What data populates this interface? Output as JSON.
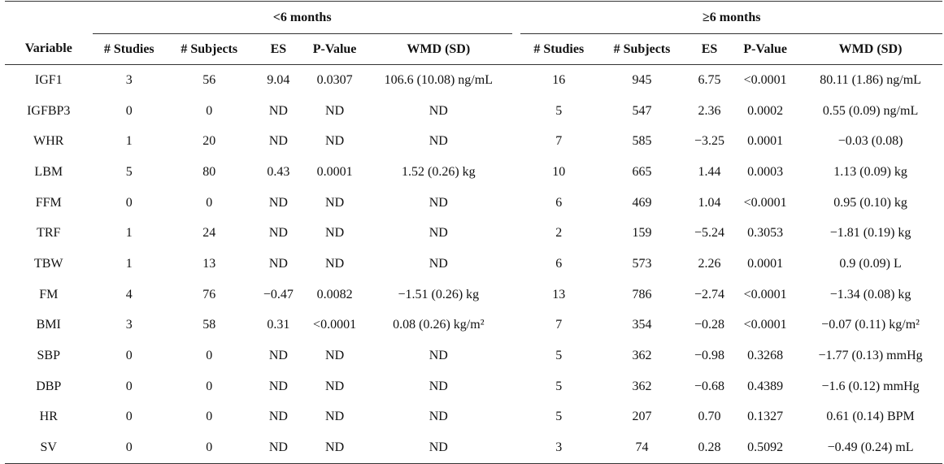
{
  "groups": [
    "<6 months",
    "≥6 months"
  ],
  "headers": [
    "Variable",
    "# Studies",
    "# Subjects",
    "ES",
    "P-Value",
    "WMD (SD)",
    "# Studies",
    "# Subjects",
    "ES",
    "P-Value",
    "WMD (SD)"
  ],
  "rows": [
    [
      "IGF1",
      "3",
      "56",
      "9.04",
      "0.0307",
      "106.6 (10.08) ng/mL",
      "16",
      "945",
      "6.75",
      "<0.0001",
      "80.11 (1.86) ng/mL"
    ],
    [
      "IGFBP3",
      "0",
      "0",
      "ND",
      "ND",
      "ND",
      "5",
      "547",
      "2.36",
      "0.0002",
      "0.55 (0.09) ng/mL"
    ],
    [
      "WHR",
      "1",
      "20",
      "ND",
      "ND",
      "ND",
      "7",
      "585",
      "−3.25",
      "0.0001",
      "−0.03 (0.08)"
    ],
    [
      "LBM",
      "5",
      "80",
      "0.43",
      "0.0001",
      "1.52 (0.26) kg",
      "10",
      "665",
      "1.44",
      "0.0003",
      "1.13 (0.09) kg"
    ],
    [
      "FFM",
      "0",
      "0",
      "ND",
      "ND",
      "ND",
      "6",
      "469",
      "1.04",
      "<0.0001",
      "0.95 (0.10) kg"
    ],
    [
      "TRF",
      "1",
      "24",
      "ND",
      "ND",
      "ND",
      "2",
      "159",
      "−5.24",
      "0.3053",
      "−1.81 (0.19) kg"
    ],
    [
      "TBW",
      "1",
      "13",
      "ND",
      "ND",
      "ND",
      "6",
      "573",
      "2.26",
      "0.0001",
      "0.9 (0.09) L"
    ],
    [
      "FM",
      "4",
      "76",
      "−0.47",
      "0.0082",
      "−1.51 (0.26) kg",
      "13",
      "786",
      "−2.74",
      "<0.0001",
      "−1.34 (0.08) kg"
    ],
    [
      "BMI",
      "3",
      "58",
      "0.31",
      "<0.0001",
      "0.08 (0.26) kg/m²",
      "7",
      "354",
      "−0.28",
      "<0.0001",
      "−0.07 (0.11) kg/m²"
    ],
    [
      "SBP",
      "0",
      "0",
      "ND",
      "ND",
      "ND",
      "5",
      "362",
      "−0.98",
      "0.3268",
      "−1.77 (0.13) mmHg"
    ],
    [
      "DBP",
      "0",
      "0",
      "ND",
      "ND",
      "ND",
      "5",
      "362",
      "−0.68",
      "0.4389",
      "−1.6 (0.12) mmHg"
    ],
    [
      "HR",
      "0",
      "0",
      "ND",
      "ND",
      "ND",
      "5",
      "207",
      "0.70",
      "0.1327",
      "0.61 (0.14) BPM"
    ],
    [
      "SV",
      "0",
      "0",
      "ND",
      "ND",
      "ND",
      "3",
      "74",
      "0.28",
      "0.5092",
      "−0.49 (0.24) mL"
    ]
  ]
}
